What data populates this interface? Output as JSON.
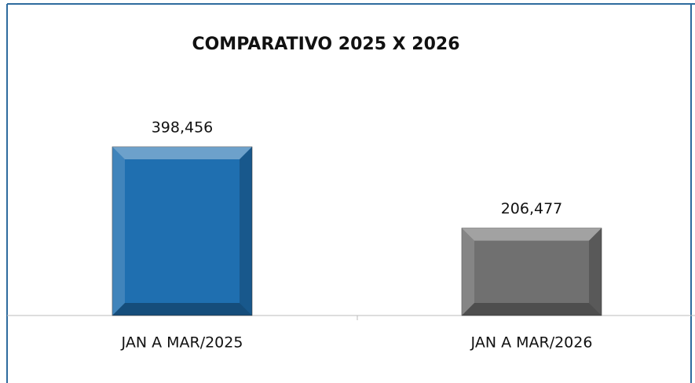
{
  "chart_data": {
    "type": "bar",
    "title": "COMPARATIVO 2025 X 2026",
    "categories": [
      "JAN A MAR/2025",
      "JAN A MAR/2026"
    ],
    "values": [
      398456,
      206477
    ],
    "value_labels": [
      "398,456",
      "206,477"
    ],
    "colors": [
      "#1f6fb0",
      "#707070"
    ]
  }
}
